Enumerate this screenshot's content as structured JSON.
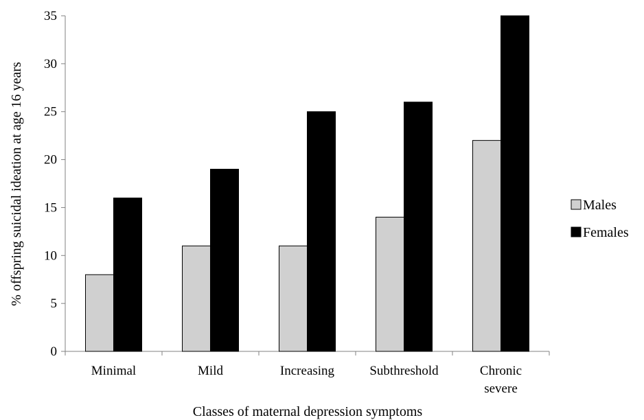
{
  "chart_data": {
    "type": "bar",
    "xlabel": "Classes of maternal depression symptoms",
    "ylabel": "% offspring suicidal ideation at age 16 years",
    "ylim": [
      0,
      35
    ],
    "yticks": [
      0,
      5,
      10,
      15,
      20,
      25,
      30,
      35
    ],
    "categories": [
      [
        "Minimal"
      ],
      [
        "Mild"
      ],
      [
        "Increasing"
      ],
      [
        "Subthreshold"
      ],
      [
        "Chronic",
        "severe"
      ]
    ],
    "series": [
      {
        "name": "Males",
        "color": "#d0d0d0",
        "values": [
          8,
          11,
          11,
          14,
          22
        ]
      },
      {
        "name": "Females",
        "color": "#000000",
        "values": [
          16,
          19,
          25,
          26,
          35
        ]
      }
    ],
    "grid": false,
    "legend_position": "right"
  }
}
